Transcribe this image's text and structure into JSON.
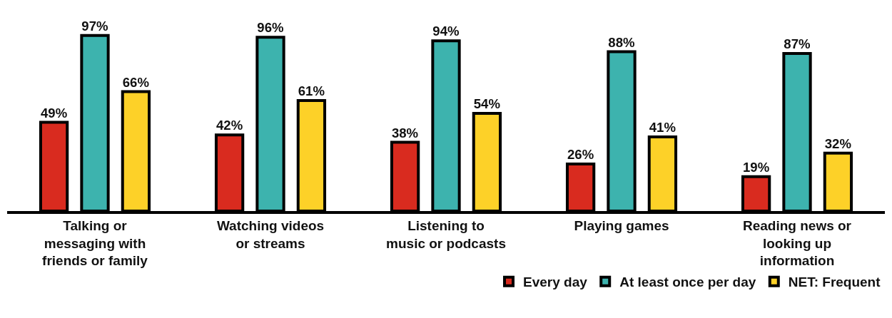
{
  "chart_data": {
    "type": "bar",
    "categories": [
      "Talking or messaging with friends or family",
      "Watching videos or streams",
      "Listening to music or podcasts",
      "Playing games",
      "Reading news or looking up information"
    ],
    "series": [
      {
        "name": "Every day",
        "color": "#d92b1f",
        "values": [
          49,
          42,
          38,
          26,
          19
        ],
        "value_labels": [
          "49%",
          "42%",
          "38%",
          "26%",
          "19%"
        ]
      },
      {
        "name": "At least once per day",
        "color": "#3db3ae",
        "values": [
          97,
          96,
          94,
          88,
          87
        ],
        "value_labels": [
          "97%",
          "96%",
          "94%",
          "88%",
          "87%"
        ]
      },
      {
        "name": "NET: Frequent",
        "color": "#fdd128",
        "values": [
          66,
          61,
          54,
          41,
          32
        ],
        "value_labels": [
          "66%",
          "61%",
          "54%",
          "41%",
          "32%"
        ]
      }
    ],
    "legend": "bottom right"
  }
}
